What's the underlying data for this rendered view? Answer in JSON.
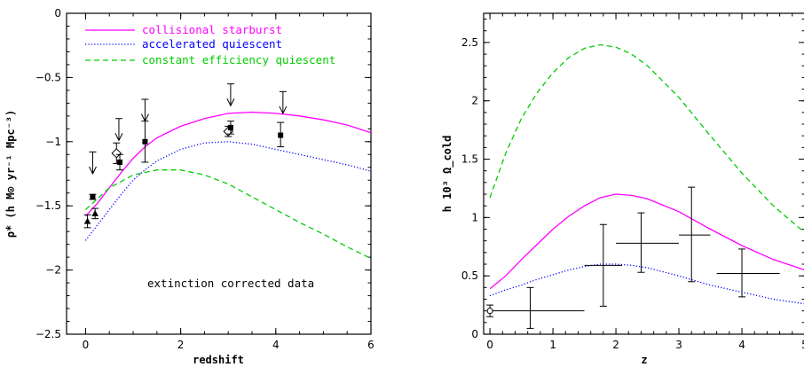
{
  "chart_data": [
    {
      "type": "line",
      "xlabel": "redshift",
      "ylabel": "ρ̇* (h M⊙ yr⁻¹ Mpc⁻³)",
      "xlim": [
        -0.4,
        6
      ],
      "ylim": [
        -2.5,
        0
      ],
      "xticks": [
        "0",
        "2",
        "4",
        "6"
      ],
      "yticks": [
        "0",
        "−0.5",
        "−1",
        "−1.5",
        "−2",
        "−2.5"
      ],
      "annotation": "extinction corrected data",
      "legend": [
        {
          "label": "collisional starburst",
          "color": "#ff00ff",
          "style": "solid"
        },
        {
          "label": "accelerated quiescent",
          "color": "#0000ff",
          "style": "dotted"
        },
        {
          "label": "constant efficiency quiescent",
          "color": "#00cc00",
          "style": "dashed"
        }
      ],
      "series": [
        {
          "name": "collisional starburst",
          "color": "#ff00ff",
          "style": "solid",
          "x": [
            0,
            0.25,
            0.5,
            0.75,
            1,
            1.25,
            1.5,
            2,
            2.5,
            3,
            3.5,
            4,
            4.5,
            5,
            5.5,
            6
          ],
          "y": [
            -1.58,
            -1.48,
            -1.36,
            -1.24,
            -1.13,
            -1.04,
            -0.97,
            -0.88,
            -0.82,
            -0.78,
            -0.77,
            -0.78,
            -0.8,
            -0.83,
            -0.87,
            -0.93
          ]
        },
        {
          "name": "accelerated quiescent",
          "color": "#0000ff",
          "style": "dotted",
          "x": [
            0,
            0.25,
            0.5,
            0.75,
            1,
            1.25,
            1.5,
            2,
            2.5,
            3,
            3.5,
            4,
            4.5,
            5,
            5.5,
            6
          ],
          "y": [
            -1.77,
            -1.65,
            -1.53,
            -1.41,
            -1.3,
            -1.22,
            -1.15,
            -1.06,
            -1.01,
            -1.0,
            -1.02,
            -1.06,
            -1.1,
            -1.14,
            -1.18,
            -1.23
          ]
        },
        {
          "name": "constant efficiency quiescent",
          "color": "#00cc00",
          "style": "dashed",
          "x": [
            0,
            0.5,
            1,
            1.5,
            2,
            2.5,
            3,
            3.5,
            4,
            4.5,
            5,
            5.5,
            6
          ],
          "y": [
            -1.53,
            -1.36,
            -1.26,
            -1.22,
            -1.22,
            -1.26,
            -1.33,
            -1.43,
            -1.53,
            -1.63,
            -1.72,
            -1.82,
            -1.91
          ]
        }
      ],
      "points": [
        {
          "x": 0.04,
          "y": -1.62,
          "ylo": 0.05,
          "yhi": 0.05,
          "marker": "triangle"
        },
        {
          "x": 0.2,
          "y": -1.56,
          "ylo": 0.04,
          "yhi": 0.04,
          "marker": "triangle"
        },
        {
          "x": 0.15,
          "y": -1.43,
          "ylo": 0.02,
          "yhi": 0.02,
          "marker": "square"
        },
        {
          "x": 0.65,
          "y": -1.09,
          "ylo": 0.08,
          "yhi": 0.08,
          "marker": "diamond"
        },
        {
          "x": 0.72,
          "y": -1.16,
          "ylo": 0.06,
          "yhi": 0.06,
          "marker": "square"
        },
        {
          "x": 1.25,
          "y": -1.0,
          "ylo": 0.16,
          "yhi": 0.16,
          "marker": "square"
        },
        {
          "x": 3.0,
          "y": -0.92,
          "ylo": 0.04,
          "yhi": 0.04,
          "marker": "diamond"
        },
        {
          "x": 3.05,
          "y": -0.89,
          "ylo": 0.05,
          "yhi": 0.05,
          "marker": "square"
        },
        {
          "x": 4.1,
          "y": -0.95,
          "ylo": 0.09,
          "yhi": 0.1,
          "marker": "square"
        }
      ],
      "upper_limits": [
        {
          "x": 0.15,
          "y_top": -1.08,
          "y_tip": -1.25
        },
        {
          "x": 0.7,
          "y_top": -0.82,
          "y_tip": -0.99
        },
        {
          "x": 1.25,
          "y_top": -0.67,
          "y_tip": -0.84
        },
        {
          "x": 3.05,
          "y_top": -0.55,
          "y_tip": -0.72
        },
        {
          "x": 4.15,
          "y_top": -0.61,
          "y_tip": -0.78
        }
      ]
    },
    {
      "type": "line",
      "xlabel": "z",
      "ylabel": "h 10³ Ω_cold",
      "xlim": [
        -0.1,
        5
      ],
      "ylim": [
        0,
        2.75
      ],
      "xticks": [
        "0",
        "1",
        "2",
        "3",
        "4",
        "5"
      ],
      "yticks": [
        "0",
        "0.5",
        "1",
        "1.5",
        "2",
        "2.5"
      ],
      "series": [
        {
          "color": "#00cc00",
          "style": "dashed",
          "x": [
            0,
            0.25,
            0.5,
            0.75,
            1,
            1.25,
            1.5,
            1.75,
            2,
            2.25,
            2.5,
            3,
            3.5,
            4,
            4.5,
            5
          ],
          "y": [
            1.17,
            1.55,
            1.85,
            2.07,
            2.24,
            2.37,
            2.45,
            2.48,
            2.46,
            2.4,
            2.3,
            2.03,
            1.7,
            1.38,
            1.1,
            0.87
          ]
        },
        {
          "color": "#ff00ff",
          "style": "solid",
          "x": [
            0,
            0.25,
            0.5,
            0.75,
            1,
            1.25,
            1.5,
            1.75,
            2,
            2.25,
            2.5,
            3,
            3.5,
            4,
            4.5,
            5
          ],
          "y": [
            0.39,
            0.5,
            0.64,
            0.77,
            0.9,
            1.01,
            1.1,
            1.17,
            1.2,
            1.19,
            1.16,
            1.05,
            0.9,
            0.76,
            0.64,
            0.55
          ]
        },
        {
          "color": "#0000ff",
          "style": "dotted",
          "x": [
            0,
            0.25,
            0.5,
            0.75,
            1,
            1.25,
            1.5,
            1.75,
            2,
            2.25,
            2.5,
            3,
            3.5,
            4,
            4.5,
            5
          ],
          "y": [
            0.33,
            0.38,
            0.42,
            0.47,
            0.51,
            0.55,
            0.58,
            0.6,
            0.6,
            0.59,
            0.57,
            0.5,
            0.42,
            0.36,
            0.3,
            0.26
          ]
        }
      ],
      "points": [
        {
          "x": 0.0,
          "y": 0.2,
          "xlo": 0.0,
          "xhi": 1.5,
          "ylo": 0.05,
          "yhi": 0.05,
          "marker": "circle"
        },
        {
          "x": 0.64,
          "y": 0.25,
          "ylo": 0.2,
          "yhi": 0.15,
          "marker": "none"
        },
        {
          "x": 1.8,
          "y": 0.59,
          "xlo": 0.3,
          "xhi": 0.3,
          "ylo": 0.35,
          "yhi": 0.35,
          "marker": "none"
        },
        {
          "x": 2.4,
          "y": 0.78,
          "xlo": 0.4,
          "xhi": 0.6,
          "ylo": 0.25,
          "yhi": 0.26,
          "marker": "none"
        },
        {
          "x": 3.2,
          "y": 0.85,
          "xlo": 0.2,
          "xhi": 0.3,
          "ylo": 0.4,
          "yhi": 0.41,
          "marker": "none"
        },
        {
          "x": 4.0,
          "y": 0.52,
          "xlo": 0.4,
          "xhi": 0.6,
          "ylo": 0.2,
          "yhi": 0.21,
          "marker": "none"
        }
      ]
    }
  ]
}
